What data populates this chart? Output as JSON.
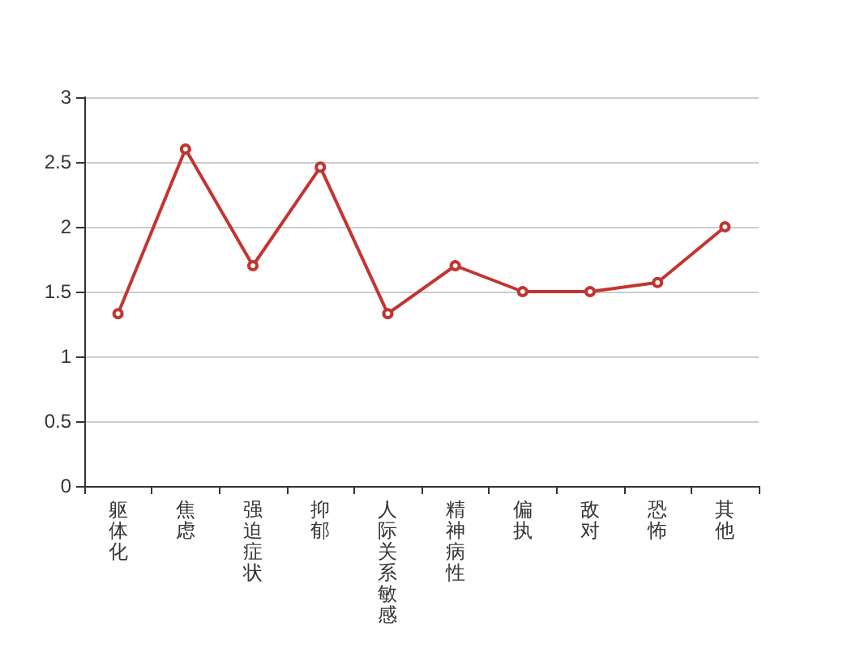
{
  "chart_data": {
    "type": "line",
    "categories": [
      "躯体化",
      "焦虑",
      "强迫症状",
      "抑郁",
      "人际关系敏感",
      "精神病性",
      "偏执",
      "敌对",
      "恐怖",
      "其他"
    ],
    "series": [
      {
        "color": "#c23531",
        "values": [
          1.33,
          2.6,
          1.7,
          2.46,
          1.33,
          1.7,
          1.5,
          1.5,
          1.57,
          2
        ]
      }
    ],
    "ylim": [
      0,
      3
    ],
    "yticks": [
      0,
      0.5,
      1,
      1.5,
      2,
      2.5,
      3
    ],
    "grid": "y",
    "marker": "circle",
    "line_style": "solid"
  }
}
